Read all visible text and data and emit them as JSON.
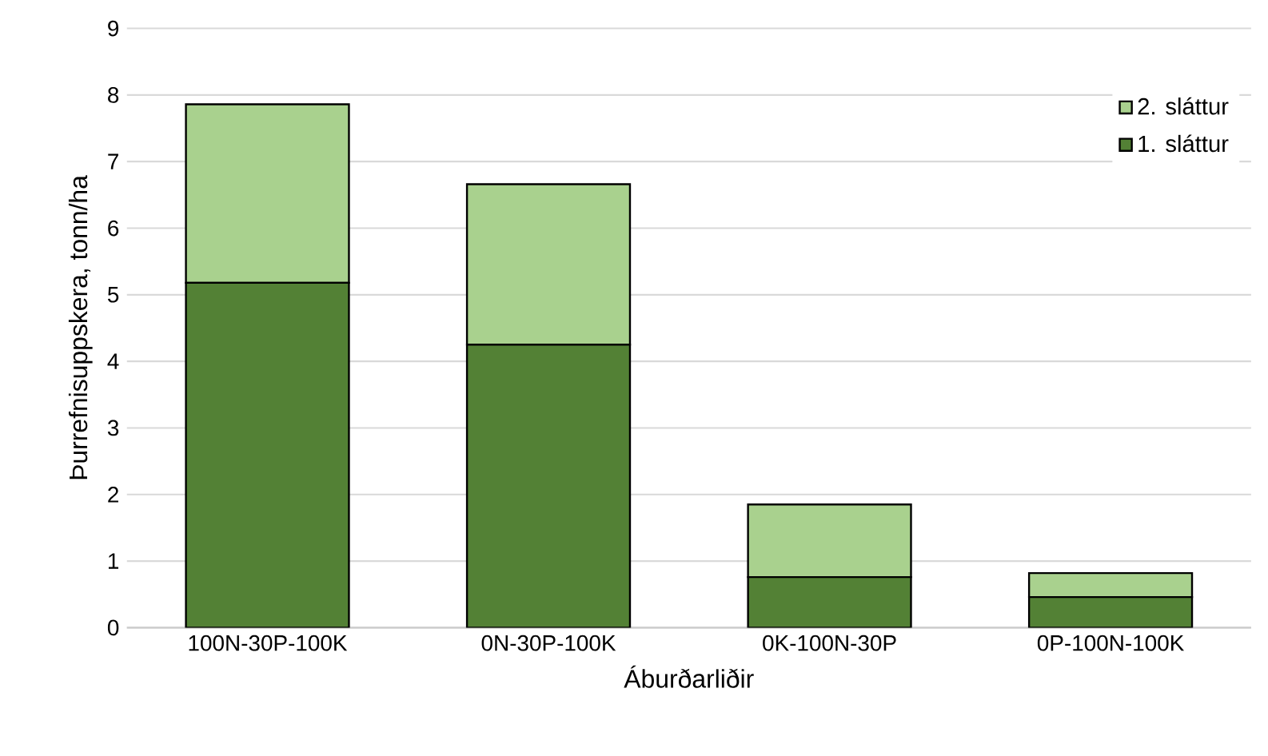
{
  "chart_data": {
    "type": "bar",
    "stacked": true,
    "xlabel": "Áburðarliðir",
    "ylabel": "Þurrefnisuppskera, tonn/ha",
    "categories": [
      "100N-30P-100K",
      "0N-30P-100K",
      "0K-100N-30P",
      "0P-100N-100K"
    ],
    "series": [
      {
        "name": "1. sláttur",
        "color": "#538135",
        "values": [
          5.18,
          4.25,
          0.76,
          0.46
        ]
      },
      {
        "name": "2. sláttur",
        "color": "#a9d18e",
        "values": [
          2.68,
          2.41,
          1.09,
          0.36
        ]
      }
    ],
    "ylim": [
      0,
      9
    ],
    "yticks": [
      0,
      1,
      2,
      3,
      4,
      5,
      6,
      7,
      8,
      9
    ],
    "grid": "y",
    "legend": "top right"
  }
}
